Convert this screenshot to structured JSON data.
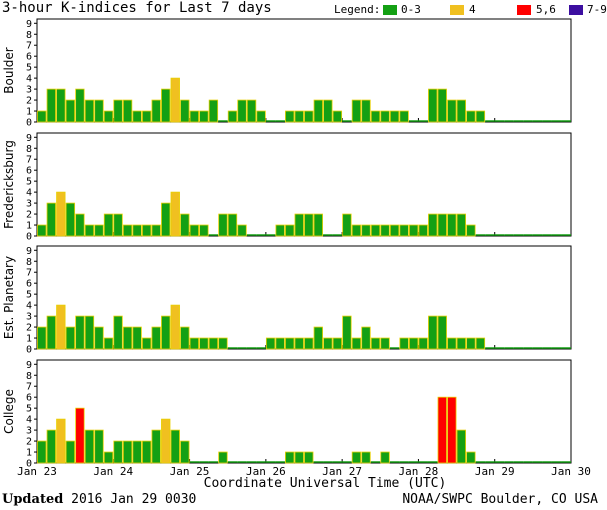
{
  "title": "3-hour K-indices for Last 7 days",
  "legend": {
    "label": "Legend:",
    "items": [
      {
        "label": "0-3",
        "color": "#14a014"
      },
      {
        "label": "4",
        "color": "#f0c020"
      },
      {
        "label": "5,6",
        "color": "#ff0000"
      },
      {
        "label": "7-9",
        "color": "#3c0ea0"
      }
    ]
  },
  "footer": {
    "updated_label": "Updated",
    "updated_value": "2016 Jan 29 0030",
    "credit": "NOAA/SWPC Boulder, CO USA"
  },
  "chart_data": {
    "type": "bar",
    "xlabel": "Coordinate Universal Time (UTC)",
    "x_ticks": [
      "Jan 23",
      "Jan 24",
      "Jan 25",
      "Jan 26",
      "Jan 27",
      "Jan 28",
      "Jan 29",
      "Jan 30"
    ],
    "ylim": [
      0,
      9
    ],
    "y_ticks": [
      "0",
      "1",
      "2",
      "3",
      "4",
      "5",
      "6",
      "7",
      "8",
      "9"
    ],
    "intervals_per_day": 8,
    "panels": [
      {
        "name": "Boulder",
        "values": [
          1,
          3,
          3,
          2,
          3,
          2,
          2,
          1,
          2,
          2,
          1,
          1,
          2,
          3,
          4,
          2,
          1,
          1,
          2,
          0,
          1,
          2,
          2,
          1,
          0,
          0,
          1,
          1,
          1,
          2,
          2,
          1,
          0,
          2,
          2,
          1,
          1,
          1,
          1,
          0,
          0,
          3,
          3,
          2,
          2,
          1,
          1,
          0,
          0,
          0,
          0,
          0,
          0,
          0,
          0,
          0
        ]
      },
      {
        "name": "Fredericksburg",
        "values": [
          1,
          3,
          4,
          3,
          2,
          1,
          1,
          2,
          2,
          1,
          1,
          1,
          1,
          3,
          4,
          2,
          1,
          1,
          0,
          2,
          2,
          1,
          0,
          0,
          0,
          1,
          1,
          2,
          2,
          2,
          0,
          0,
          2,
          1,
          1,
          1,
          1,
          1,
          1,
          1,
          1,
          2,
          2,
          2,
          2,
          1,
          0,
          0,
          0,
          0,
          0,
          0,
          0,
          0,
          0,
          0
        ]
      },
      {
        "name": "Est. Planetary",
        "values": [
          2,
          3,
          4,
          2,
          3,
          3,
          2,
          1,
          3,
          2,
          2,
          1,
          2,
          3,
          4,
          2,
          1,
          1,
          1,
          1,
          0,
          0,
          0,
          0,
          1,
          1,
          1,
          1,
          1,
          2,
          1,
          1,
          3,
          1,
          2,
          1,
          1,
          0,
          1,
          1,
          1,
          3,
          3,
          1,
          1,
          1,
          1,
          0,
          0,
          0,
          0,
          0,
          0,
          0,
          0,
          0
        ]
      },
      {
        "name": "College",
        "values": [
          2,
          3,
          4,
          2,
          5,
          3,
          3,
          1,
          2,
          2,
          2,
          2,
          3,
          4,
          3,
          2,
          0,
          0,
          0,
          1,
          0,
          0,
          0,
          0,
          0,
          0,
          1,
          1,
          1,
          0,
          0,
          0,
          0,
          1,
          1,
          0,
          1,
          0,
          0,
          0,
          0,
          0,
          6,
          6,
          3,
          1,
          0,
          0,
          0,
          0,
          0,
          0,
          0,
          0,
          0,
          0
        ]
      }
    ]
  }
}
